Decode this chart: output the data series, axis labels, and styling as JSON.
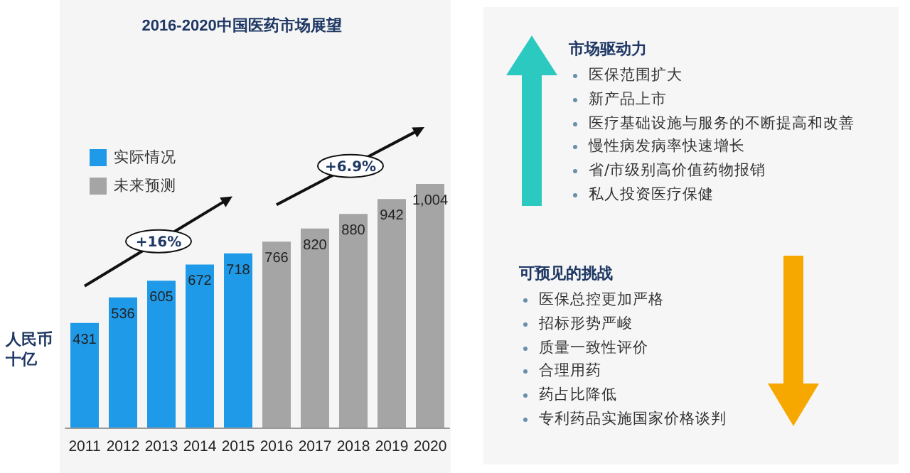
{
  "chart_data": [
    {
      "type": "bar",
      "title": "2016-2020中国医药市场展望",
      "ylabel": "人民币十亿",
      "categories": [
        "2011",
        "2012",
        "2013",
        "2014",
        "2015",
        "2016",
        "2017",
        "2018",
        "2019",
        "2020"
      ],
      "series": [
        {
          "name": "实际情况",
          "color": "#1f9ae8",
          "values": [
            431,
            536,
            605,
            672,
            718,
            null,
            null,
            null,
            null,
            null
          ],
          "value_labels": [
            "431",
            "536",
            "605",
            "672",
            "718",
            null,
            null,
            null,
            null,
            null
          ]
        },
        {
          "name": "未来预测",
          "color": "#a5a5a5",
          "values": [
            null,
            null,
            null,
            null,
            null,
            766,
            820,
            880,
            942,
            1004
          ],
          "value_labels": [
            null,
            null,
            null,
            null,
            null,
            "766",
            "820",
            "880",
            "942",
            "1,004"
          ]
        }
      ],
      "legend": "top left",
      "grid": false,
      "annotations": [
        "+16%",
        "+6.9%"
      ]
    },
    {
      "type": "other",
      "title": "市场驱动力",
      "annotations": [
        "医保范围扩大",
        "新产品上市",
        "医疗基础设施与服务的不断提高和改善",
        "慢性病发病率快速增长",
        "省/市级别高价值药物报销",
        "私人投资医疗保健"
      ]
    },
    {
      "type": "other",
      "title": "可预见的挑战",
      "annotations": [
        "医保总控更加严格",
        "招标形势严峻",
        "质量一致性评价",
        "合理用药",
        "药占比降低",
        "专利药品实施国家价格谈判"
      ]
    }
  ]
}
